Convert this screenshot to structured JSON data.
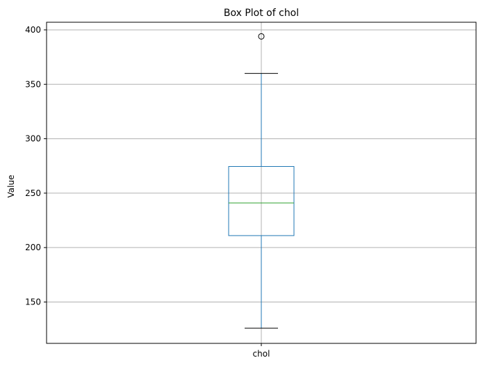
{
  "chart_data": {
    "type": "box",
    "title": "Box Plot of chol",
    "xlabel": "",
    "ylabel": "Value",
    "categories": [
      "chol"
    ],
    "boxes": [
      {
        "name": "chol",
        "whisker_low": 126,
        "q1": 211,
        "median": 241,
        "q3": 274.5,
        "whisker_high": 360,
        "outliers": [
          394
        ]
      }
    ],
    "ylim": [
      112,
      407
    ],
    "yticks": [
      150,
      200,
      250,
      300,
      350,
      400
    ],
    "grid": true,
    "colors": {
      "box": "#1f77b4",
      "median": "#2ca02c",
      "caps": "#000000",
      "grid": "#b0b0b0",
      "outlier": "#000000"
    }
  }
}
